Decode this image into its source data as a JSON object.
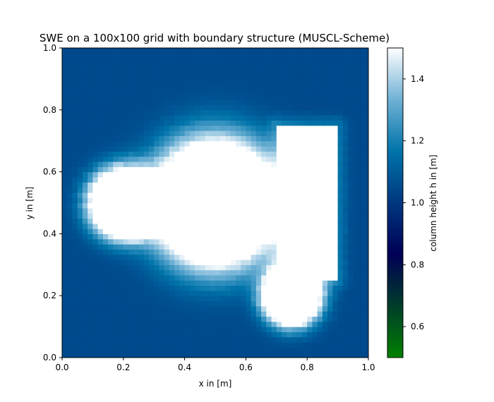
{
  "chart_data": {
    "type": "heatmap",
    "title": "SWE on a 100x100 grid with boundary structure (MUSCL-Scheme)",
    "xlabel": "x in [m]",
    "ylabel": "y in [m]",
    "xlim": [
      0.0,
      1.0
    ],
    "ylim": [
      0.0,
      1.0
    ],
    "xticks": [
      "0.0",
      "0.2",
      "0.4",
      "0.6",
      "0.8",
      "1.0"
    ],
    "yticks": [
      "0.0",
      "0.2",
      "0.4",
      "0.6",
      "0.8",
      "1.0"
    ],
    "colorbar": {
      "label": "column height h in [m]",
      "colormap": "ocean",
      "range": [
        0.5,
        1.5
      ],
      "ticks": [
        "0.6",
        "0.8",
        "1.0",
        "1.2",
        "1.4"
      ],
      "tick_values": [
        0.6,
        0.8,
        1.0,
        1.2,
        1.4
      ]
    },
    "background_value": 1.05,
    "features": [
      {
        "name": "small-bump",
        "shape": "gaussian",
        "center": [
          0.2,
          0.5
        ],
        "radius": 0.07,
        "peak": 1.5
      },
      {
        "name": "large-bump",
        "shape": "gaussian",
        "center": [
          0.5,
          0.5
        ],
        "radius": 0.13,
        "peak": 1.5
      },
      {
        "name": "boundary-structure",
        "shape": "rectangle",
        "x_range": [
          0.7,
          0.9
        ],
        "y_range": [
          0.25,
          0.75
        ],
        "value": "obstacle"
      },
      {
        "name": "lower-lobe",
        "shape": "gaussian",
        "center": [
          0.75,
          0.2
        ],
        "radius": 0.06,
        "peak": 1.5
      }
    ],
    "obstacle_color": "#ffffff"
  }
}
